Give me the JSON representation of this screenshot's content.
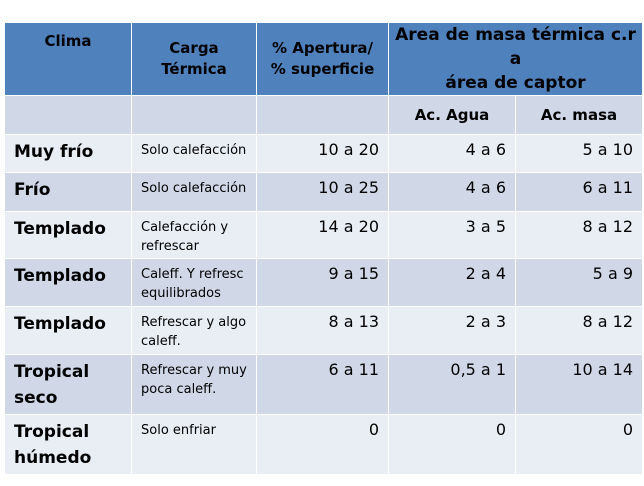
{
  "header": {
    "col1": "Clima",
    "col2_line1": "Carga",
    "col2_line2": "Térmica",
    "col3_line1": "% Apertura/",
    "col3_line2": "% superficie",
    "col4_line1": "Area de masa térmica c.r a",
    "col4_line2": "área de captor",
    "sub_agua": "Ac. Agua",
    "sub_masa": "Ac. masa"
  },
  "rows": [
    {
      "clima_l1": "Muy frío",
      "clima_l2": "",
      "carga_l1": "Solo calefacción",
      "carga_l2": "",
      "apertura": "10 a 20",
      "agua": "4 a 6",
      "masa": "5 a 10"
    },
    {
      "clima_l1": "Frío",
      "clima_l2": "",
      "carga_l1": "Solo calefacción",
      "carga_l2": "",
      "apertura": "10 a 25",
      "agua": "4 a 6",
      "masa": "6 a 11"
    },
    {
      "clima_l1": "Templado",
      "clima_l2": "",
      "carga_l1": "Calefacción y",
      "carga_l2": "refrescar",
      "apertura": "14 a 20",
      "agua": "3 a 5",
      "masa": "8 a 12"
    },
    {
      "clima_l1": "Templado",
      "clima_l2": "",
      "carga_l1": "Caleff. Y refresc",
      "carga_l2": "equilibrados",
      "apertura": "9 a 15",
      "agua": "2 a 4",
      "masa": "5 a 9"
    },
    {
      "clima_l1": "Templado",
      "clima_l2": "",
      "carga_l1": "Refrescar y algo",
      "carga_l2": "caleff.",
      "apertura": "8 a 13",
      "agua": "2 a 3",
      "masa": "8 a 12"
    },
    {
      "clima_l1": "Tropical",
      "clima_l2": "seco",
      "carga_l1": "Refrescar y muy",
      "carga_l2": "poca caleff.",
      "apertura": "6 a 11",
      "agua": "0,5 a 1",
      "masa": "10 a 14"
    },
    {
      "clima_l1": "Tropical",
      "clima_l2": "húmedo",
      "carga_l1": "Solo enfriar",
      "carga_l2": "",
      "apertura": "0",
      "agua": "0",
      "masa": "0"
    }
  ]
}
